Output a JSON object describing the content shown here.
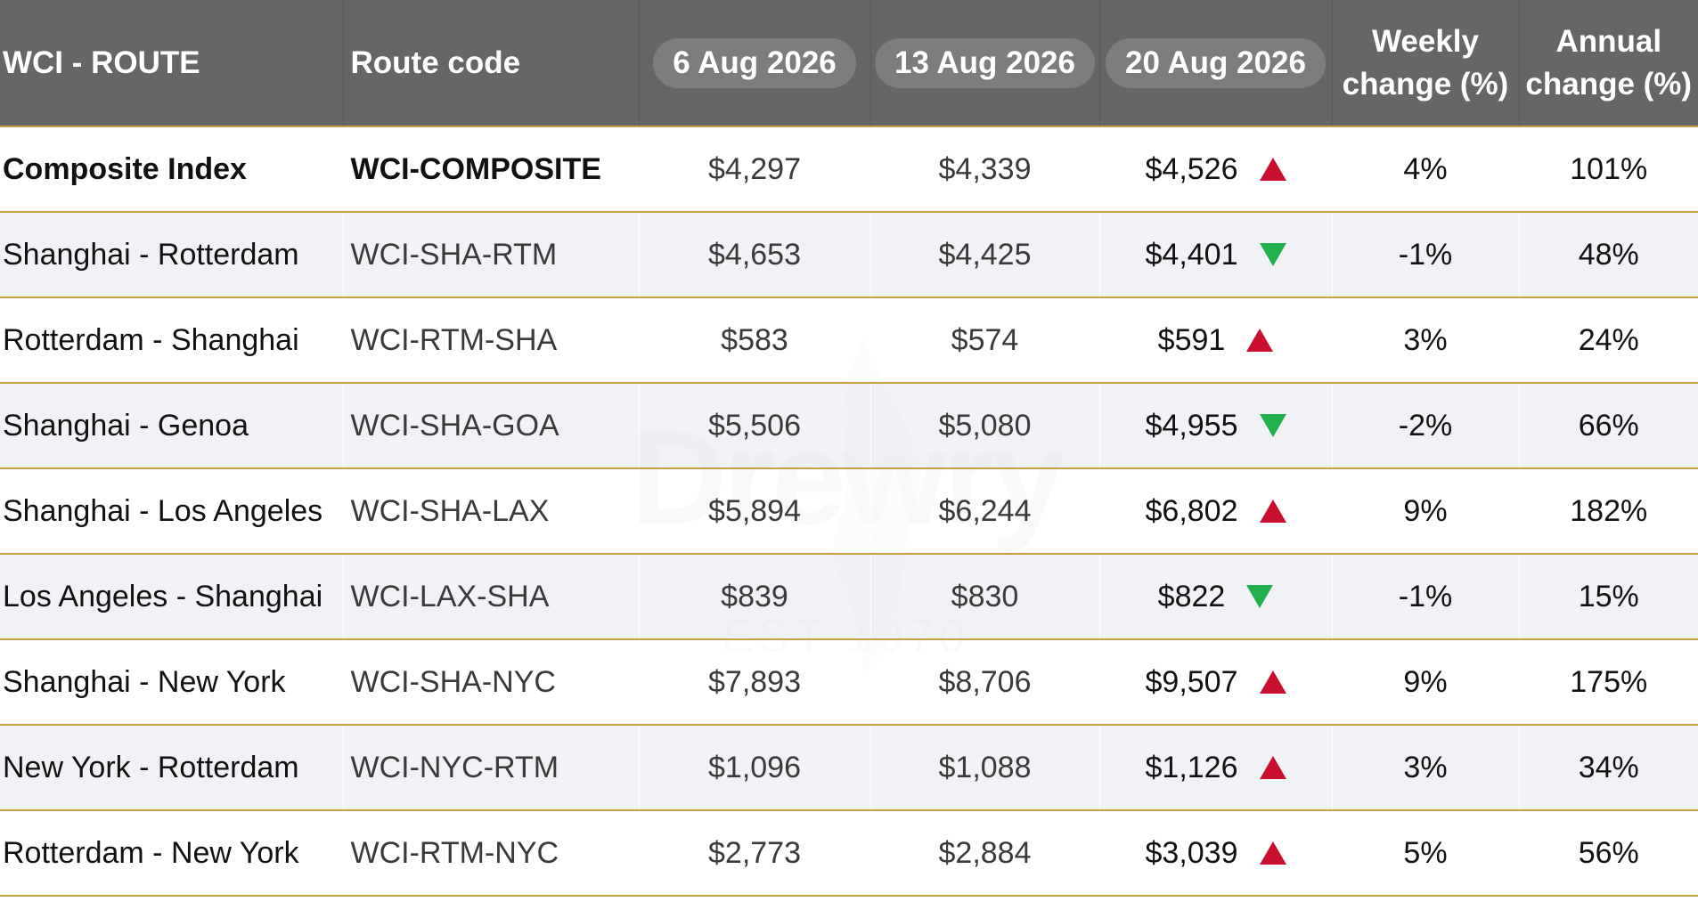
{
  "header": {
    "route": "WCI - ROUTE",
    "code": "Route code",
    "date1": "6 Aug 2026",
    "date2": "13 Aug 2026",
    "date3": "20 Aug 2026",
    "weekly_line1": "Weekly",
    "weekly_line2": "change (%)",
    "annual_line1": "Annual",
    "annual_line2": "change (%)"
  },
  "rows": [
    {
      "route": "Composite Index",
      "code": "WCI-COMPOSITE",
      "d1": "$4,297",
      "d2": "$4,339",
      "d3": "$4,526",
      "trend": "up",
      "weekly": "4%",
      "annual": "101%"
    },
    {
      "route": "Shanghai - Rotterdam",
      "code": "WCI-SHA-RTM",
      "d1": "$4,653",
      "d2": "$4,425",
      "d3": "$4,401",
      "trend": "down",
      "weekly": "-1%",
      "annual": "48%"
    },
    {
      "route": "Rotterdam - Shanghai",
      "code": "WCI-RTM-SHA",
      "d1": "$583",
      "d2": "$574",
      "d3": "$591",
      "trend": "up",
      "weekly": "3%",
      "annual": "24%"
    },
    {
      "route": "Shanghai - Genoa",
      "code": "WCI-SHA-GOA",
      "d1": "$5,506",
      "d2": "$5,080",
      "d3": "$4,955",
      "trend": "down",
      "weekly": "-2%",
      "annual": "66%"
    },
    {
      "route": "Shanghai - Los Angeles",
      "code": "WCI-SHA-LAX",
      "d1": "$5,894",
      "d2": "$6,244",
      "d3": "$6,802",
      "trend": "up",
      "weekly": "9%",
      "annual": "182%"
    },
    {
      "route": "Los Angeles - Shanghai",
      "code": "WCI-LAX-SHA",
      "d1": "$839",
      "d2": "$830",
      "d3": "$822",
      "trend": "down",
      "weekly": "-1%",
      "annual": "15%"
    },
    {
      "route": "Shanghai - New York",
      "code": "WCI-SHA-NYC",
      "d1": "$7,893",
      "d2": "$8,706",
      "d3": "$9,507",
      "trend": "up",
      "weekly": "9%",
      "annual": "175%"
    },
    {
      "route": "New York - Rotterdam",
      "code": "WCI-NYC-RTM",
      "d1": "$1,096",
      "d2": "$1,088",
      "d3": "$1,126",
      "trend": "up",
      "weekly": "3%",
      "annual": "34%"
    },
    {
      "route": "Rotterdam - New York",
      "code": "WCI-RTM-NYC",
      "d1": "$2,773",
      "d2": "$2,884",
      "d3": "$3,039",
      "trend": "up",
      "weekly": "5%",
      "annual": "56%"
    }
  ],
  "watermark": {
    "brand": "Drewry",
    "est": "EST 1970"
  },
  "colors": {
    "header_bg": "#666666",
    "date_pill_bg": "#7d7d7d",
    "row_divider": "#c9a04a",
    "alt_row_bg": "#eef0f4",
    "up_arrow": "#c8102e",
    "down_arrow": "#22b14c"
  },
  "icons": {
    "up": "triangle-up-icon",
    "down": "triangle-down-icon"
  }
}
